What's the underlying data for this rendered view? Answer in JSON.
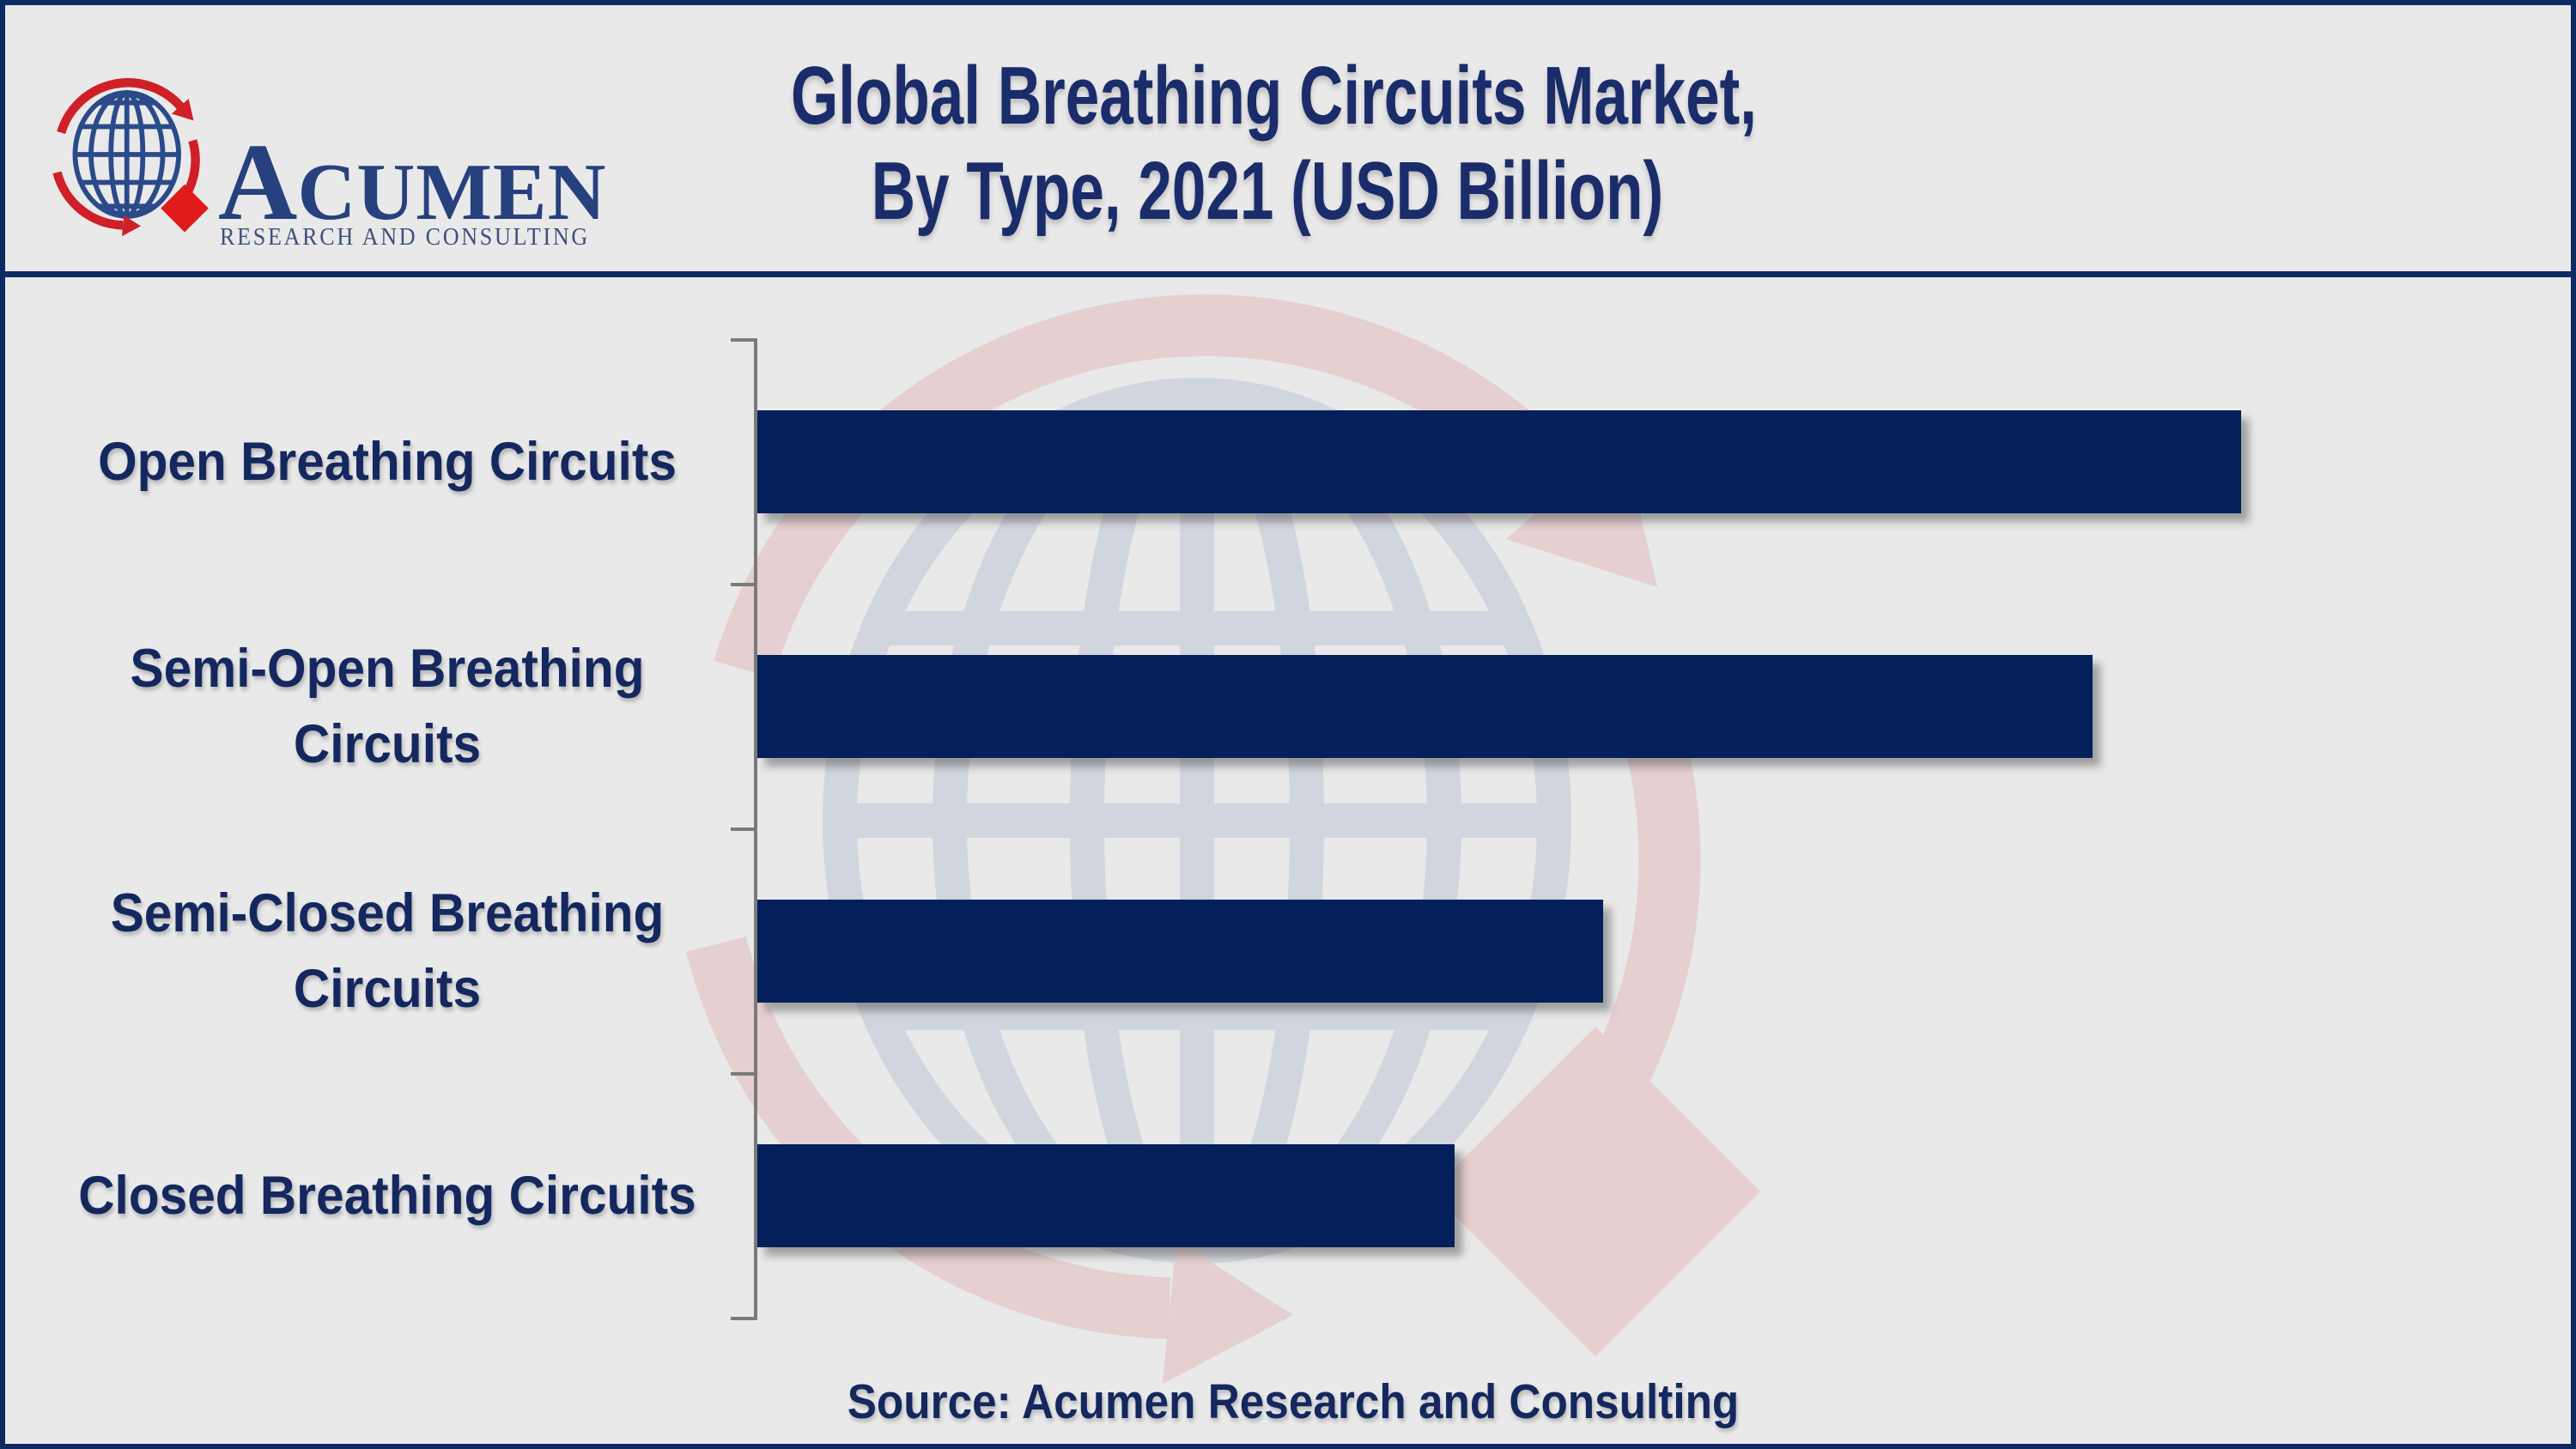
{
  "page": {
    "background": "#e9e9e9",
    "border_color": "#0e2a63"
  },
  "logo": {
    "brand_display": {
      "initial": "A",
      "rest": "CUMEN"
    },
    "subtitle": "RESEARCH AND CONSULTING",
    "icon": "globe-with-red-orbit-arrows-and-diamond",
    "colors": {
      "globe_blue": "#2a4a8a",
      "arrow_red": "#cf2027",
      "brand_text": "#27417e",
      "subtitle_text": "#3f4f7d"
    }
  },
  "title": {
    "line1": "Global Breathing Circuits Market,",
    "line2": "By Type, 2021 (USD Billion)",
    "color": "#1b2c6b"
  },
  "source_note": "Source: Acumen Research and Consulting",
  "chart_data": {
    "type": "bar",
    "orientation": "horizontal",
    "title": "Global Breathing Circuits Market, By Type, 2021 (USD Billion)",
    "value_unit": "USD Billion",
    "categories": [
      "Open Breathing Circuits",
      "Semi-Open Breathing Circuits",
      "Semi-Closed Breathing Circuits",
      "Closed Breathing Circuits"
    ],
    "categories_lines": [
      [
        "Open Breathing Circuits"
      ],
      [
        "Semi-Open Breathing",
        "Circuits"
      ],
      [
        "Semi-Closed Breathing",
        "Circuits"
      ],
      [
        "Closed Breathing Circuits"
      ]
    ],
    "values_pct_of_longest": [
      100,
      90,
      57,
      47
    ],
    "value_labels_shown": false,
    "axis_value_ticks_shown": false,
    "gridlines": false,
    "legend": null,
    "bar_color": "#04205a",
    "axis_color": "#7a7a7a"
  }
}
